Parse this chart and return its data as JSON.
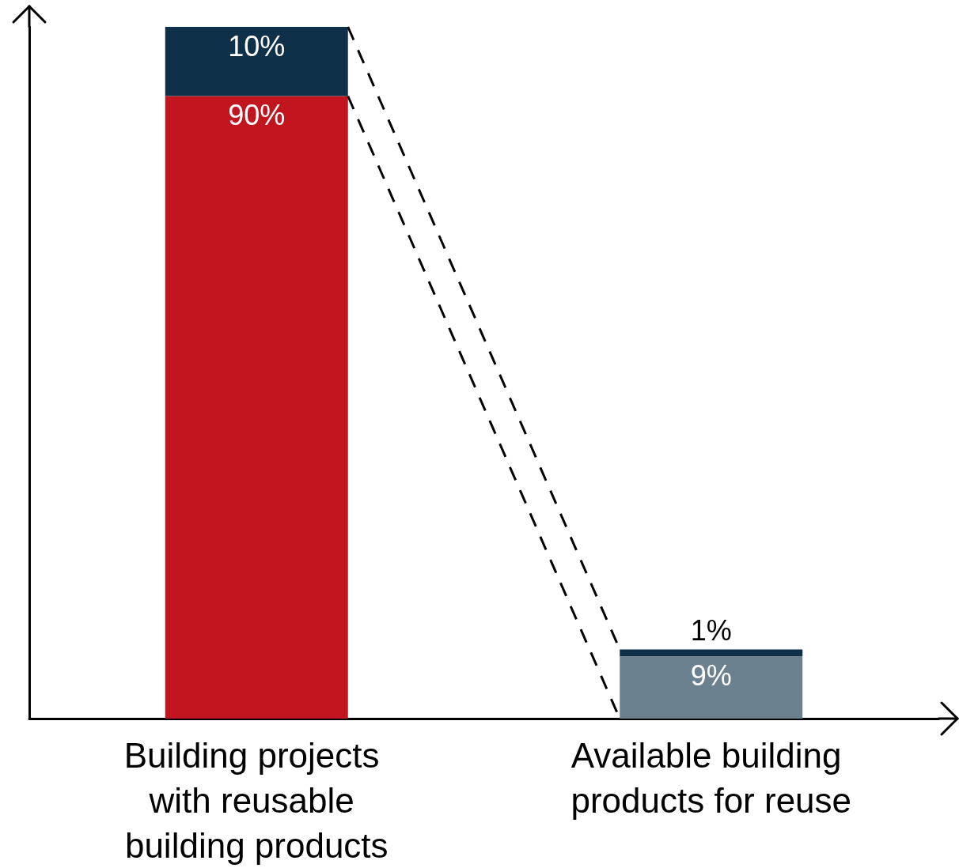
{
  "chart_data": {
    "type": "bar",
    "stacked": true,
    "tick_labels": "x",
    "categories": [
      "Building projects with reusable building products",
      "Available building products for reuse"
    ],
    "series": [
      {
        "colors": [
          "#c1151f",
          "#6c8190"
        ],
        "values": [
          90,
          9
        ],
        "value_labels": [
          "90%",
          "9%"
        ]
      },
      {
        "color": "#0f3049",
        "values": [
          10,
          1
        ],
        "value_labels": [
          "10%",
          "1%"
        ]
      }
    ]
  }
}
